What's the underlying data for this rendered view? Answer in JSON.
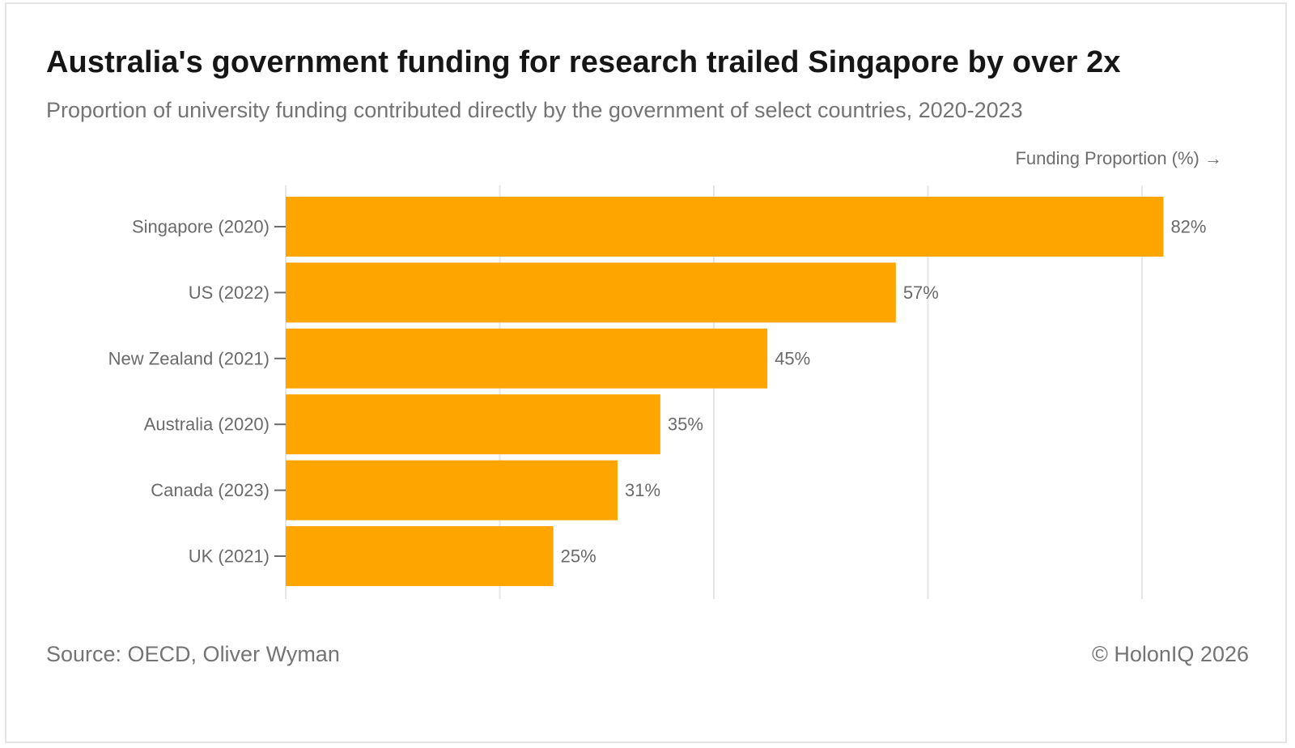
{
  "header": {
    "title": "Australia's government funding for research trailed Singapore by over 2x",
    "subtitle": "Proportion of university funding contributed directly by the government of select countries, 2020-2023"
  },
  "footer": {
    "source": "Source: OECD, Oliver Wyman",
    "copyright": "© HolonIQ 2026"
  },
  "chart_data": {
    "type": "bar",
    "orientation": "horizontal",
    "title": "Australia's government funding for research trailed Singapore by over 2x",
    "subtitle": "Proportion of university funding contributed directly by the government of select countries, 2020-2023",
    "xlabel": "Funding Proportion (%) →",
    "ylabel": "",
    "categories": [
      "Singapore (2020)",
      "US (2022)",
      "New Zealand (2021)",
      "Australia (2020)",
      "Canada (2023)",
      "UK (2021)"
    ],
    "values": [
      82,
      57,
      45,
      35,
      31,
      25
    ],
    "value_labels": [
      "82%",
      "57%",
      "45%",
      "35%",
      "31%",
      "25%"
    ],
    "xlim": [
      0,
      80
    ],
    "x_gridlines": [
      0,
      20,
      40,
      60,
      80
    ],
    "grid": true,
    "bar_color": "#FFA500",
    "gridline_color": "#e6e6e6",
    "x_tick_labels_visible": false
  }
}
